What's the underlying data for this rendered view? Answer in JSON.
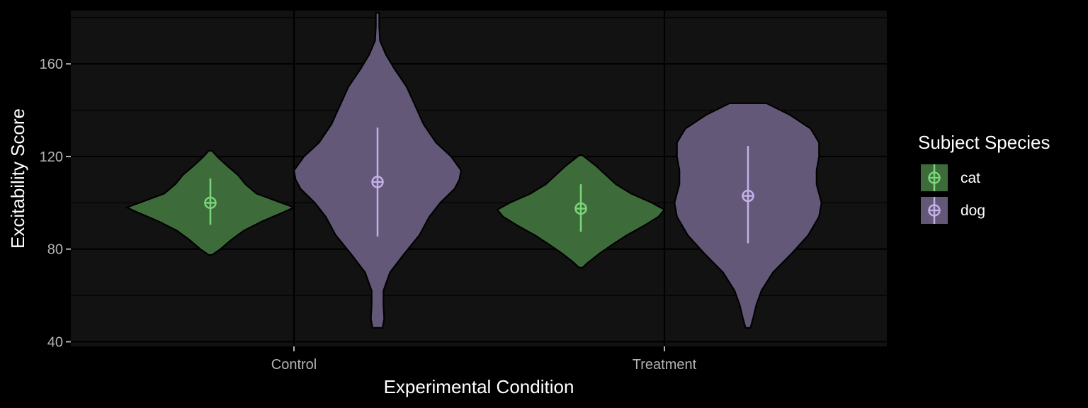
{
  "chart_data": {
    "type": "violin",
    "title": "",
    "xlabel": "Experimental Condition",
    "ylabel": "Excitability Score",
    "categories": [
      "Control",
      "Treatment"
    ],
    "ylim": [
      38,
      183
    ],
    "yticks": [
      40,
      80,
      120,
      160
    ],
    "grid": true,
    "legend": {
      "title": "Subject Species",
      "position": "right"
    },
    "series": [
      {
        "name": "cat",
        "fill": "#3e6b3a",
        "point_color": "#7bd67b",
        "violins": [
          {
            "category": "Control",
            "mean": 100,
            "low": 90.5,
            "high": 110.5,
            "min": 77.5,
            "max": 122.5,
            "profile": [
              [
                77.5,
                0.02
              ],
              [
                80,
                0.12
              ],
              [
                84,
                0.25
              ],
              [
                88,
                0.4
              ],
              [
                92,
                0.62
              ],
              [
                96,
                0.88
              ],
              [
                98,
                1.0
              ],
              [
                100,
                0.85
              ],
              [
                104,
                0.55
              ],
              [
                108,
                0.42
              ],
              [
                112,
                0.33
              ],
              [
                116,
                0.2
              ],
              [
                120,
                0.08
              ],
              [
                122.5,
                0.02
              ]
            ]
          },
          {
            "category": "Treatment",
            "mean": 97.5,
            "low": 87.5,
            "high": 108,
            "min": 72,
            "max": 120.5,
            "profile": [
              [
                72,
                0.02
              ],
              [
                74,
                0.08
              ],
              [
                78,
                0.22
              ],
              [
                82,
                0.38
              ],
              [
                86,
                0.55
              ],
              [
                90,
                0.75
              ],
              [
                94,
                0.93
              ],
              [
                97,
                1.0
              ],
              [
                100,
                0.85
              ],
              [
                104,
                0.6
              ],
              [
                108,
                0.42
              ],
              [
                112,
                0.3
              ],
              [
                116,
                0.18
              ],
              [
                120.5,
                0.02
              ]
            ]
          }
        ]
      },
      {
        "name": "dog",
        "fill": "#635878",
        "point_color": "#c4b0e8",
        "violins": [
          {
            "category": "Control",
            "mean": 109,
            "low": 85.5,
            "high": 132.5,
            "min": 46,
            "max": 182,
            "profile": [
              [
                46,
                0.06
              ],
              [
                50,
                0.08
              ],
              [
                56,
                0.07
              ],
              [
                62,
                0.07
              ],
              [
                70,
                0.15
              ],
              [
                78,
                0.32
              ],
              [
                86,
                0.5
              ],
              [
                94,
                0.62
              ],
              [
                100,
                0.75
              ],
              [
                106,
                0.92
              ],
              [
                110,
                0.98
              ],
              [
                114,
                1.0
              ],
              [
                120,
                0.88
              ],
              [
                126,
                0.7
              ],
              [
                134,
                0.55
              ],
              [
                142,
                0.45
              ],
              [
                150,
                0.35
              ],
              [
                158,
                0.2
              ],
              [
                164,
                0.1
              ],
              [
                170,
                0.03
              ],
              [
                176,
                0.02
              ],
              [
                182,
                0.02
              ]
            ]
          },
          {
            "category": "Treatment",
            "mean": 103,
            "low": 82.5,
            "high": 124.5,
            "min": 46,
            "max": 143,
            "profile": [
              [
                46,
                0.03
              ],
              [
                50,
                0.06
              ],
              [
                56,
                0.1
              ],
              [
                62,
                0.16
              ],
              [
                70,
                0.3
              ],
              [
                78,
                0.52
              ],
              [
                86,
                0.72
              ],
              [
                94,
                0.85
              ],
              [
                100,
                0.88
              ],
              [
                104,
                0.85
              ],
              [
                108,
                0.82
              ],
              [
                114,
                0.82
              ],
              [
                120,
                0.85
              ],
              [
                126,
                0.85
              ],
              [
                132,
                0.75
              ],
              [
                138,
                0.5
              ],
              [
                143,
                0.22
              ]
            ]
          }
        ]
      }
    ]
  }
}
